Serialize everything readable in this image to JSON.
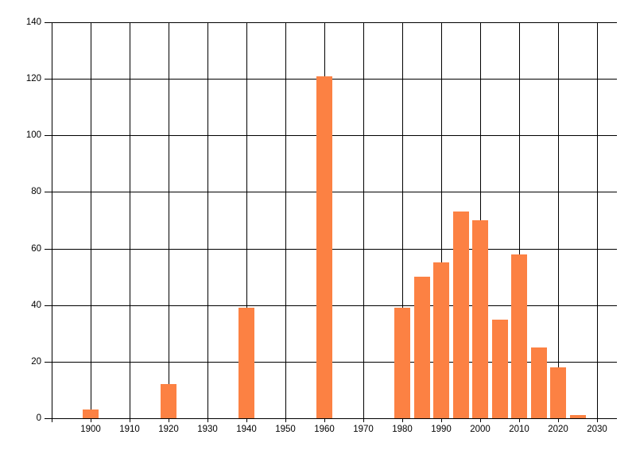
{
  "window": {
    "background": "#FFFFFF"
  },
  "chart_data": {
    "type": "bar",
    "title": "",
    "xlabel": "",
    "ylabel": "",
    "x": [
      1900,
      1920,
      1940,
      1960,
      1980,
      1985,
      1990,
      1995,
      2000,
      2005,
      2010,
      2015,
      2020,
      2025
    ],
    "values": [
      3,
      12,
      39,
      121,
      39,
      50,
      55,
      73,
      70,
      35,
      58,
      25,
      18,
      1
    ],
    "xlim": [
      1890,
      2035
    ],
    "ylim": [
      0,
      140
    ],
    "x_ticks": [
      "1900",
      "1910",
      "1920",
      "1930",
      "1940",
      "1950",
      "1960",
      "1970",
      "1980",
      "1990",
      "2000",
      "2010",
      "2020",
      "2030"
    ],
    "y_ticks": [
      "0",
      "20",
      "40",
      "60",
      "80",
      "100",
      "120",
      "140"
    ],
    "bar_color": "#FC8143",
    "bar_width_years": 4.1,
    "grid": "both",
    "grid_color": "#000000",
    "axis_color": "#000000",
    "tick_label_color": "#000000",
    "legend": null
  }
}
